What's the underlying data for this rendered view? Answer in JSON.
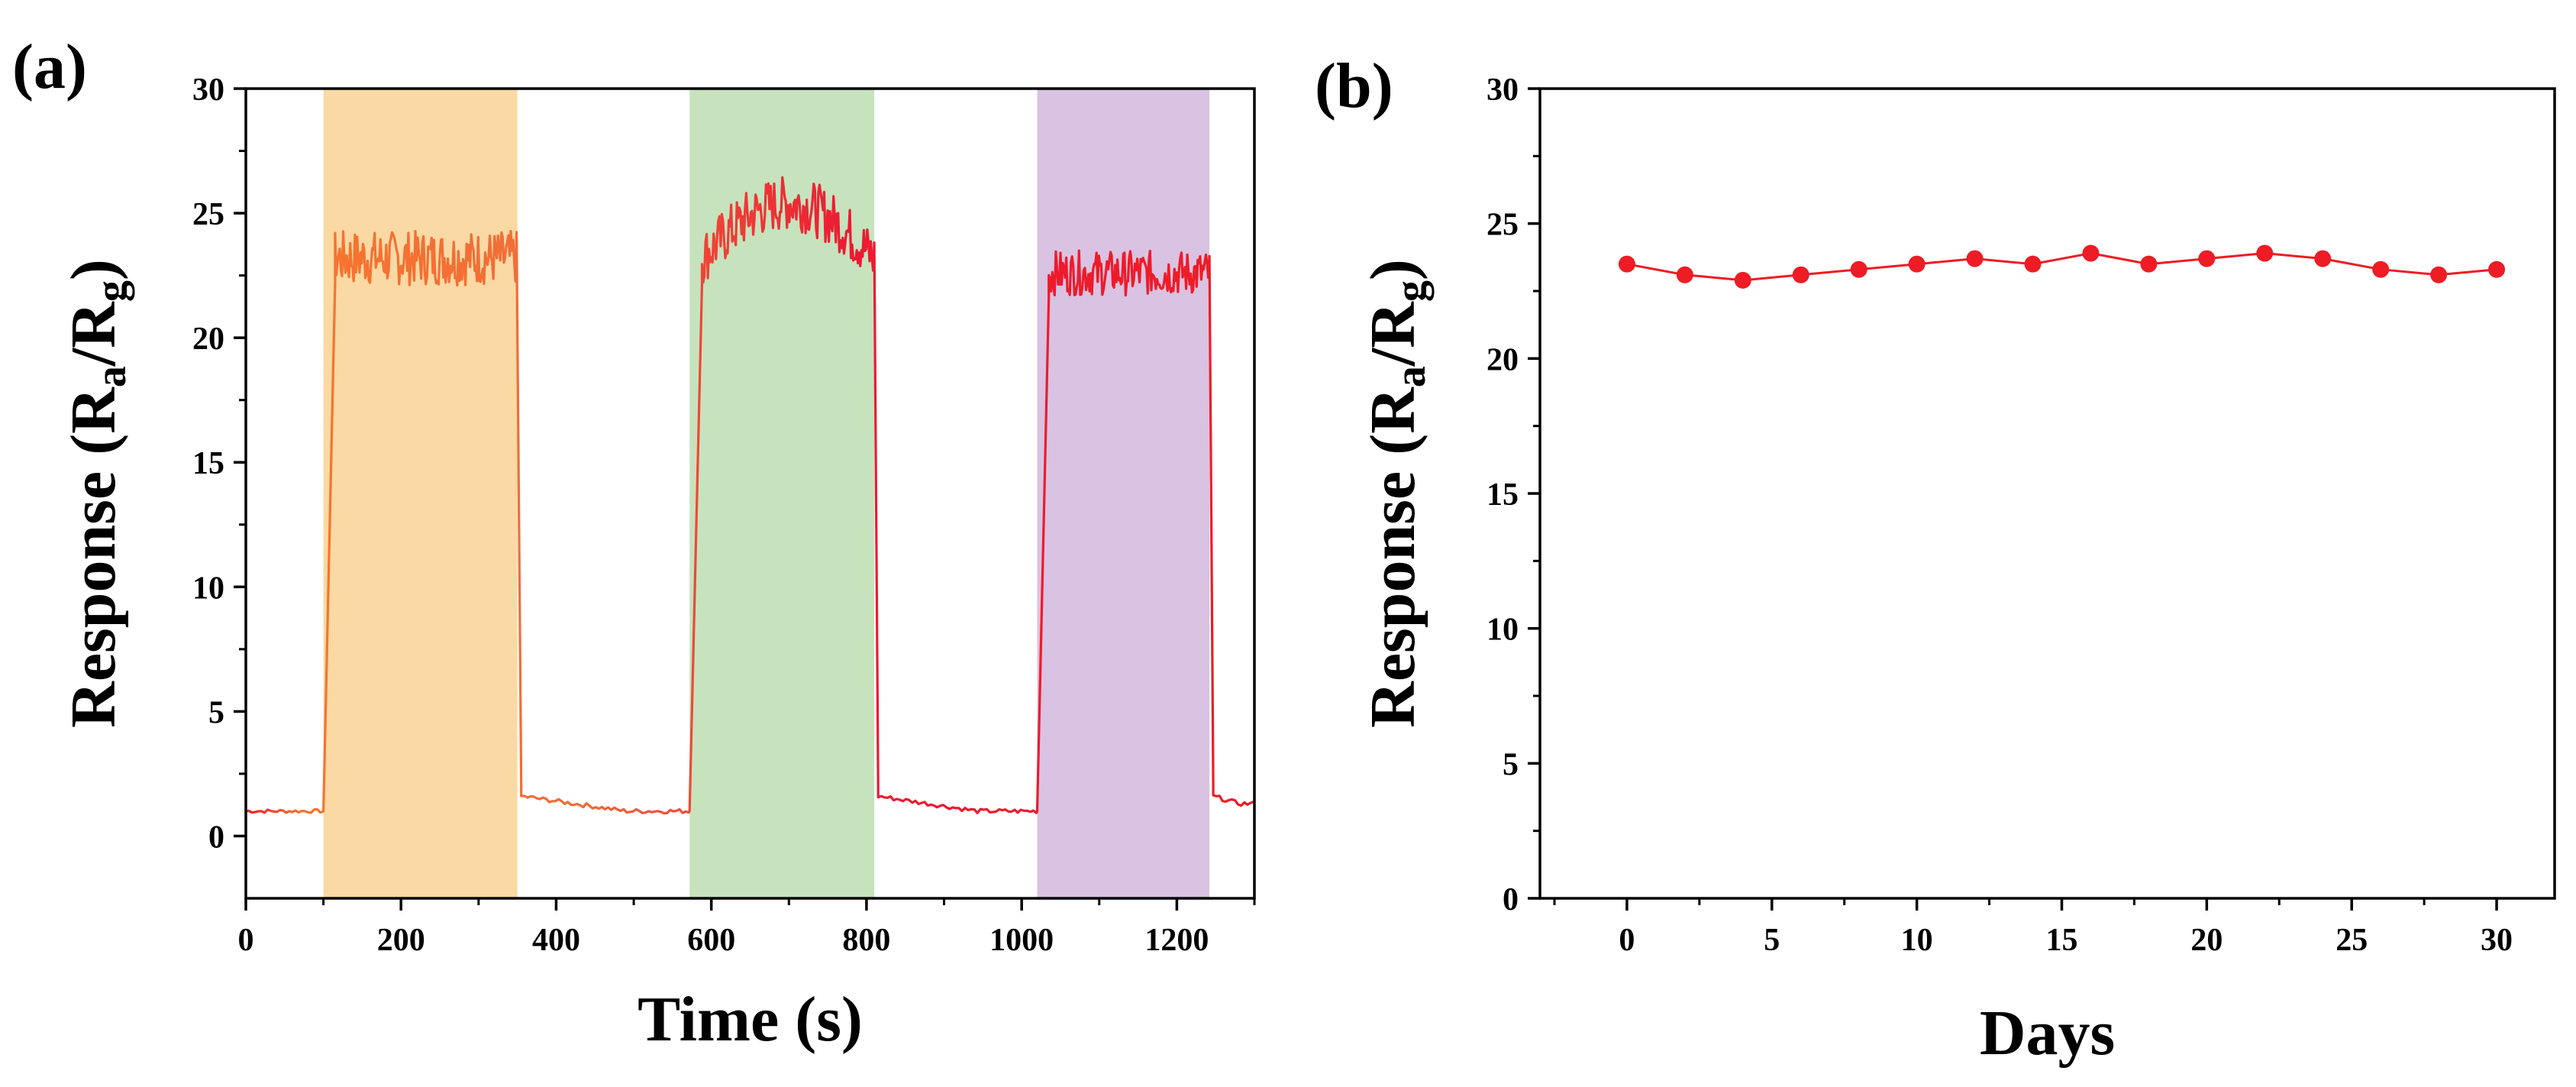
{
  "figure": {
    "panel_a_label": "(a)",
    "panel_b_label": "(b)"
  },
  "chart_data": [
    {
      "id": "a",
      "type": "line",
      "xlabel": "Time (s)",
      "ylabel": {
        "main": "Response (R",
        "sub1": "a",
        "slash": "/R",
        "sub2": "g",
        "close": ")"
      },
      "xlim": [
        0,
        1300
      ],
      "ylim": [
        -2.5,
        30
      ],
      "xticks": [
        0,
        200,
        400,
        600,
        800,
        1000,
        1200
      ],
      "yticks": [
        0,
        5,
        10,
        15,
        20,
        25,
        30
      ],
      "line_color": "#ee1c24",
      "shaded_regions": [
        {
          "x0": 100,
          "x1": 350,
          "color": "#fad9a4"
        },
        {
          "x0": 572,
          "x1": 810,
          "color": "#c6e3bd"
        },
        {
          "x0": 1020,
          "x1": 1242,
          "color": "#dac2e2"
        }
      ],
      "baseline": [
        {
          "x0": 0,
          "x1": 100,
          "y": 1.0
        },
        {
          "x0": 355,
          "x1": 572,
          "y_start": 1.6,
          "y_end": 1.0
        },
        {
          "x0": 815,
          "x1": 1020,
          "y_start": 1.6,
          "y_end": 1.0
        },
        {
          "x0": 1247,
          "x1": 1300,
          "y_start": 1.6,
          "y_end": 1.3
        }
      ],
      "plateaus": [
        {
          "rise_start": 100,
          "rise_end": 115,
          "fall_start": 350,
          "fall_end": 355,
          "level": 23.2,
          "amplitude": 1.1,
          "drift": 0.0
        },
        {
          "rise_start": 572,
          "rise_end": 588,
          "fall_start": 810,
          "fall_end": 815,
          "level": 23.2,
          "amplitude": 1.1,
          "drift": 2.2
        },
        {
          "rise_start": 1020,
          "rise_end": 1035,
          "fall_start": 1242,
          "fall_end": 1247,
          "level": 22.6,
          "amplitude": 0.9,
          "drift": 0.0
        }
      ]
    },
    {
      "id": "b",
      "type": "scatter",
      "xlabel": "Days",
      "ylabel": {
        "main": "Response (R",
        "sub1": "a",
        "slash": "/R",
        "sub2": "g",
        "close": ")"
      },
      "xlim": [
        -3,
        32
      ],
      "ylim": [
        0,
        30
      ],
      "xticks": [
        0,
        5,
        10,
        15,
        20,
        25,
        30
      ],
      "yticks": [
        0,
        5,
        10,
        15,
        20,
        25,
        30
      ],
      "marker_color": "#ee1c24",
      "x": [
        0,
        2,
        4,
        6,
        8,
        10,
        12,
        14,
        16,
        18,
        20,
        22,
        24,
        26,
        28,
        30
      ],
      "values": [
        23.5,
        23.1,
        22.9,
        23.1,
        23.3,
        23.5,
        23.7,
        23.5,
        23.9,
        23.5,
        23.7,
        23.9,
        23.7,
        23.3,
        23.1,
        23.3
      ]
    }
  ]
}
